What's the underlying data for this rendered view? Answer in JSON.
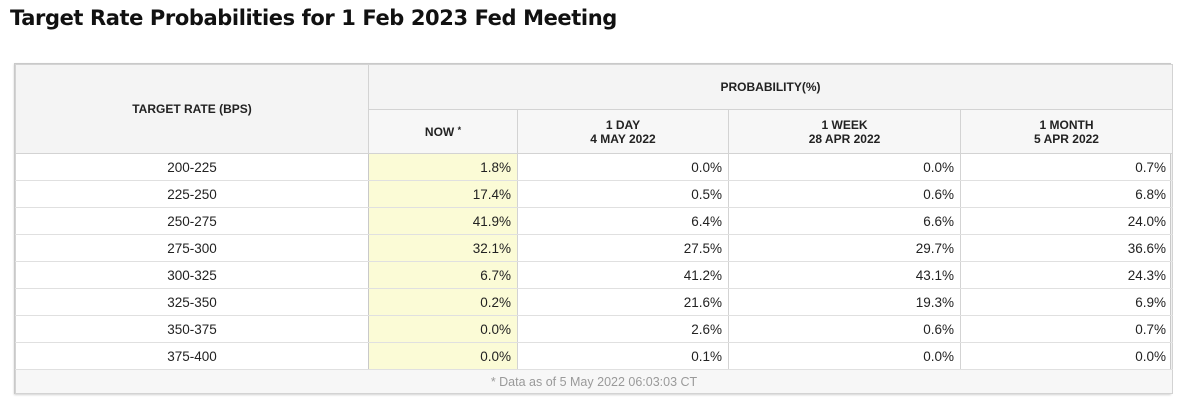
{
  "title": "Target Rate Probabilities for 1 Feb 2023 Fed Meeting",
  "header": {
    "target_rate": "TARGET RATE (BPS)",
    "probability": "PROBABILITY(%)",
    "now": "NOW",
    "now_marker": "*",
    "day_label": "1 DAY",
    "day_date": "4 MAY 2022",
    "week_label": "1 WEEK",
    "week_date": "28 APR 2022",
    "month_label": "1 MONTH",
    "month_date": "5 APR 2022"
  },
  "footer": "* Data as of 5 May 2022 06:03:03 CT",
  "colors": {
    "now_highlight": "#fbfbd6",
    "header_bg": "#f4f4f4",
    "border": "#d3d3d3",
    "footer_text": "#9a9a9a"
  },
  "chart_data": {
    "type": "table",
    "title": "Target Rate Probabilities for 1 Feb 2023 Fed Meeting",
    "columns": [
      "TARGET RATE (BPS)",
      "NOW *",
      "1 DAY 4 MAY 2022",
      "1 WEEK 28 APR 2022",
      "1 MONTH 5 APR 2022"
    ],
    "rows": [
      {
        "rate": "200-225",
        "now": "1.8%",
        "day": "0.0%",
        "week": "0.0%",
        "month": "0.7%"
      },
      {
        "rate": "225-250",
        "now": "17.4%",
        "day": "0.5%",
        "week": "0.6%",
        "month": "6.8%"
      },
      {
        "rate": "250-275",
        "now": "41.9%",
        "day": "6.4%",
        "week": "6.6%",
        "month": "24.0%"
      },
      {
        "rate": "275-300",
        "now": "32.1%",
        "day": "27.5%",
        "week": "29.7%",
        "month": "36.6%"
      },
      {
        "rate": "300-325",
        "now": "6.7%",
        "day": "41.2%",
        "week": "43.1%",
        "month": "24.3%"
      },
      {
        "rate": "325-350",
        "now": "0.2%",
        "day": "21.6%",
        "week": "19.3%",
        "month": "6.9%"
      },
      {
        "rate": "350-375",
        "now": "0.0%",
        "day": "2.6%",
        "week": "0.6%",
        "month": "0.7%"
      },
      {
        "rate": "375-400",
        "now": "0.0%",
        "day": "0.1%",
        "week": "0.0%",
        "month": "0.0%"
      }
    ]
  }
}
